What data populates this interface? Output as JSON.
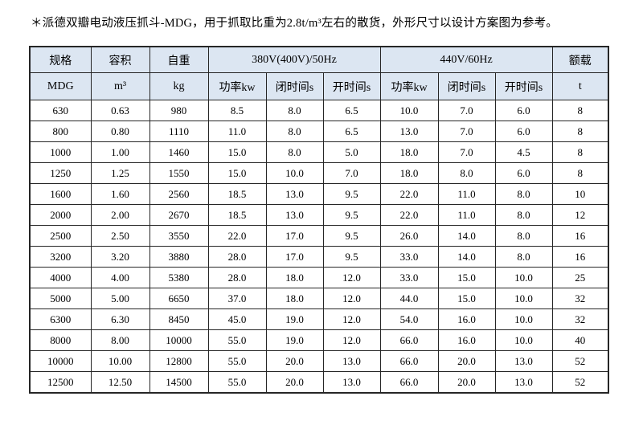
{
  "title": "＊派德双瓣电动液压抓斗-MDG，用于抓取比重为2.8t/m³左右的散货，外形尺寸以设计方案图为参考。",
  "colors": {
    "header_bg": "#dce6f2",
    "border": "#262626",
    "text": "#000000"
  },
  "table": {
    "header": {
      "row1": [
        "规格",
        "容积",
        "自重",
        "380V(400V)/50Hz",
        "440V/60Hz",
        "额载"
      ],
      "row2": [
        "MDG",
        "m³",
        "kg",
        "功率kw",
        "闭时间s",
        "开时间s",
        "功率kw",
        "闭时间s",
        "开时间s",
        "t"
      ]
    },
    "rows": [
      [
        "630",
        "0.63",
        "980",
        "8.5",
        "8.0",
        "6.5",
        "10.0",
        "7.0",
        "6.0",
        "8"
      ],
      [
        "800",
        "0.80",
        "1110",
        "11.0",
        "8.0",
        "6.5",
        "13.0",
        "7.0",
        "6.0",
        "8"
      ],
      [
        "1000",
        "1.00",
        "1460",
        "15.0",
        "8.0",
        "5.0",
        "18.0",
        "7.0",
        "4.5",
        "8"
      ],
      [
        "1250",
        "1.25",
        "1550",
        "15.0",
        "10.0",
        "7.0",
        "18.0",
        "8.0",
        "6.0",
        "8"
      ],
      [
        "1600",
        "1.60",
        "2560",
        "18.5",
        "13.0",
        "9.5",
        "22.0",
        "11.0",
        "8.0",
        "10"
      ],
      [
        "2000",
        "2.00",
        "2670",
        "18.5",
        "13.0",
        "9.5",
        "22.0",
        "11.0",
        "8.0",
        "12"
      ],
      [
        "2500",
        "2.50",
        "3550",
        "22.0",
        "17.0",
        "9.5",
        "26.0",
        "14.0",
        "8.0",
        "16"
      ],
      [
        "3200",
        "3.20",
        "3880",
        "28.0",
        "17.0",
        "9.5",
        "33.0",
        "14.0",
        "8.0",
        "16"
      ],
      [
        "4000",
        "4.00",
        "5380",
        "28.0",
        "18.0",
        "12.0",
        "33.0",
        "15.0",
        "10.0",
        "25"
      ],
      [
        "5000",
        "5.00",
        "6650",
        "37.0",
        "18.0",
        "12.0",
        "44.0",
        "15.0",
        "10.0",
        "32"
      ],
      [
        "6300",
        "6.30",
        "8450",
        "45.0",
        "19.0",
        "12.0",
        "54.0",
        "16.0",
        "10.0",
        "32"
      ],
      [
        "8000",
        "8.00",
        "10000",
        "55.0",
        "19.0",
        "12.0",
        "66.0",
        "16.0",
        "10.0",
        "40"
      ],
      [
        "10000",
        "10.00",
        "12800",
        "55.0",
        "20.0",
        "13.0",
        "66.0",
        "20.0",
        "13.0",
        "52"
      ],
      [
        "12500",
        "12.50",
        "14500",
        "55.0",
        "20.0",
        "13.0",
        "66.0",
        "20.0",
        "13.0",
        "52"
      ]
    ],
    "column_semantics": [
      "spec-mdg",
      "capacity-m3",
      "deadweight-kg",
      "power-kw-50hz",
      "close-time-s-50hz",
      "open-time-s-50hz",
      "power-kw-60hz",
      "close-time-s-60hz",
      "open-time-s-60hz",
      "rated-load-t"
    ]
  }
}
